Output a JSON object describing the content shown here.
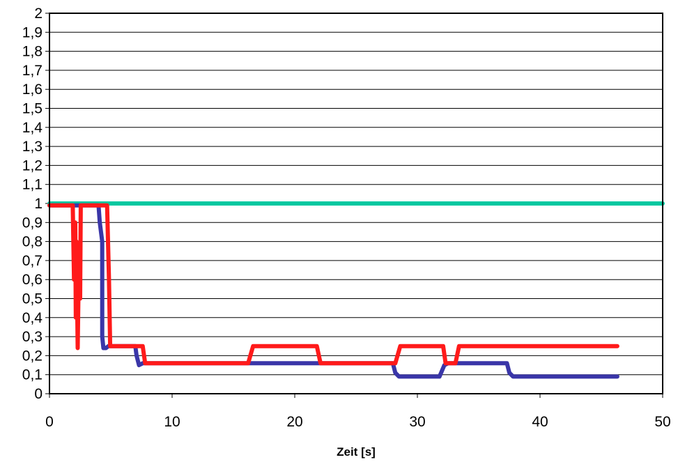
{
  "chart_data": {
    "type": "line",
    "title": "",
    "xlabel": "Zeit [s]",
    "ylabel": "",
    "xlim": [
      0,
      50
    ],
    "ylim": [
      0,
      2
    ],
    "x_ticks": [
      "0",
      "10",
      "20",
      "30",
      "40",
      "50"
    ],
    "y_ticks": [
      "0",
      "0,1",
      "0,2",
      "0,3",
      "0,4",
      "0,5",
      "0,6",
      "0,7",
      "0,8",
      "0,9",
      "1",
      "1,1",
      "1,2",
      "1,3",
      "1,4",
      "1,5",
      "1,6",
      "1,7",
      "1,8",
      "1,9",
      "2"
    ],
    "grid": "horizontal",
    "legend": "none",
    "series": [
      {
        "color": "#00c8a0",
        "points": [
          [
            0,
            1.0
          ],
          [
            50,
            1.0
          ]
        ]
      },
      {
        "color": "#3a36a8",
        "points": [
          [
            0,
            0.99
          ],
          [
            4.0,
            0.99
          ],
          [
            4.1,
            0.9
          ],
          [
            4.3,
            0.8
          ],
          [
            4.3,
            0.5
          ],
          [
            4.3,
            0.3
          ],
          [
            4.4,
            0.24
          ],
          [
            4.6,
            0.24
          ],
          [
            4.8,
            0.25
          ],
          [
            7.0,
            0.25
          ],
          [
            7.1,
            0.2
          ],
          [
            7.3,
            0.15
          ],
          [
            7.6,
            0.16
          ],
          [
            28.0,
            0.16
          ],
          [
            28.2,
            0.11
          ],
          [
            28.5,
            0.09
          ],
          [
            31.8,
            0.09
          ],
          [
            32.2,
            0.15
          ],
          [
            32.5,
            0.16
          ],
          [
            37.3,
            0.16
          ],
          [
            37.5,
            0.11
          ],
          [
            37.8,
            0.09
          ],
          [
            46.3,
            0.09
          ]
        ]
      },
      {
        "color": "#ff1a1a",
        "points": [
          [
            0,
            0.99
          ],
          [
            1.9,
            0.99
          ],
          [
            2.0,
            0.6
          ],
          [
            2.1,
            0.9
          ],
          [
            2.15,
            0.4
          ],
          [
            2.2,
            0.8
          ],
          [
            2.3,
            0.24
          ],
          [
            2.4,
            0.7
          ],
          [
            2.5,
            0.5
          ],
          [
            2.55,
            0.99
          ],
          [
            4.6,
            0.99
          ],
          [
            4.7,
            0.99
          ],
          [
            4.85,
            0.6
          ],
          [
            4.95,
            0.25
          ],
          [
            7.6,
            0.25
          ],
          [
            7.8,
            0.16
          ],
          [
            16.2,
            0.16
          ],
          [
            16.6,
            0.25
          ],
          [
            21.8,
            0.25
          ],
          [
            22.1,
            0.16
          ],
          [
            28.2,
            0.16
          ],
          [
            28.6,
            0.25
          ],
          [
            32.1,
            0.25
          ],
          [
            32.3,
            0.16
          ],
          [
            33.1,
            0.16
          ],
          [
            33.4,
            0.25
          ],
          [
            46.3,
            0.25
          ]
        ]
      }
    ]
  }
}
